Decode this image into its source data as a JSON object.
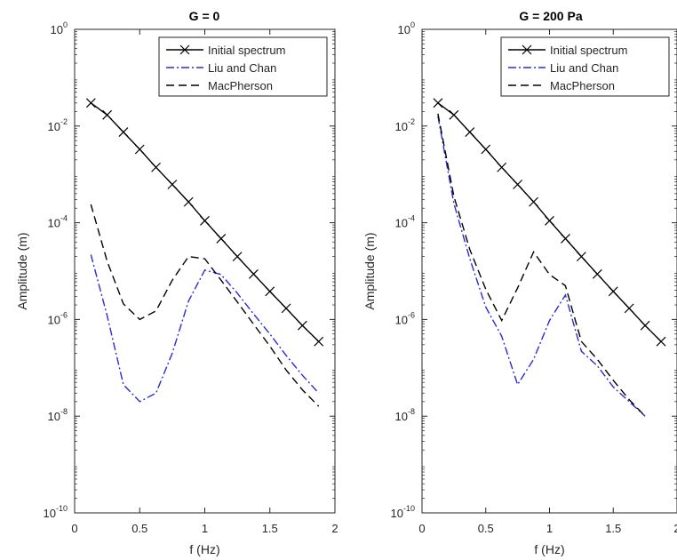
{
  "chart_data": [
    {
      "type": "line",
      "title": "G = 0",
      "xlabel": "f (Hz)",
      "ylabel": "Amplitude (m)",
      "xlim": [
        0,
        2
      ],
      "ylim": [
        1e-10,
        1
      ],
      "yscale": "log",
      "xticks": [
        "0",
        "0.5",
        "1",
        "1.5",
        "2"
      ],
      "yticks": [
        {
          "base": "10",
          "exp": "-10"
        },
        {
          "base": "10",
          "exp": "-8"
        },
        {
          "base": "10",
          "exp": "-6"
        },
        {
          "base": "10",
          "exp": "-4"
        },
        {
          "base": "10",
          "exp": "-2"
        },
        {
          "base": "10",
          "exp": "0"
        }
      ],
      "legend_position": "top-right",
      "series": [
        {
          "name": "Initial spectrum",
          "color": "#000000",
          "style": "solid-x-markers",
          "x": [
            0.125,
            0.25,
            0.375,
            0.5,
            0.625,
            0.75,
            0.875,
            1.0,
            1.125,
            1.25,
            1.375,
            1.5,
            1.625,
            1.75,
            1.875
          ],
          "y": [
            0.03,
            0.017,
            0.0075,
            0.0033,
            0.0014,
            0.00062,
            0.00027,
            0.00011,
            4.7e-05,
            2e-05,
            8.7e-06,
            3.8e-06,
            1.7e-06,
            7.5e-07,
            3.5e-07
          ]
        },
        {
          "name": "Liu and Chan",
          "color": "#2b2bd6",
          "style": "dashdot",
          "x": [
            0.125,
            0.25,
            0.375,
            0.5,
            0.625,
            0.75,
            0.875,
            1.0,
            1.125,
            1.25,
            1.375,
            1.5,
            1.625,
            1.75,
            1.875
          ],
          "y": [
            2.2e-05,
            1.2e-06,
            4.5e-08,
            2e-08,
            3e-08,
            2e-07,
            2.4e-06,
            1.05e-05,
            8.5e-06,
            3.5e-06,
            1.3e-06,
            5e-07,
            1.8e-07,
            7e-08,
            3e-08
          ]
        },
        {
          "name": "MacPherson",
          "color": "#000000",
          "style": "dashed",
          "x": [
            0.125,
            0.25,
            0.375,
            0.5,
            0.625,
            0.75,
            0.875,
            1.0,
            1.125,
            1.25,
            1.375,
            1.5,
            1.625,
            1.75,
            1.875
          ],
          "y": [
            0.00024,
            1.6e-05,
            2.1e-06,
            1e-06,
            1.5e-06,
            6.5e-06,
            2e-05,
            1.8e-05,
            6.5e-06,
            2.3e-06,
            8e-07,
            2.8e-07,
            9e-08,
            3.5e-08,
            1.6e-08
          ]
        }
      ]
    },
    {
      "type": "line",
      "title": "G = 200 Pa",
      "xlabel": "f (Hz)",
      "ylabel": "Amplitude (m)",
      "xlim": [
        0,
        2
      ],
      "ylim": [
        1e-10,
        1
      ],
      "yscale": "log",
      "xticks": [
        "0",
        "0.5",
        "1",
        "1.5",
        "2"
      ],
      "yticks": [
        {
          "base": "10",
          "exp": "-10"
        },
        {
          "base": "10",
          "exp": "-8"
        },
        {
          "base": "10",
          "exp": "-6"
        },
        {
          "base": "10",
          "exp": "-4"
        },
        {
          "base": "10",
          "exp": "-2"
        },
        {
          "base": "10",
          "exp": "0"
        }
      ],
      "legend_position": "top-right",
      "series": [
        {
          "name": "Initial spectrum",
          "color": "#000000",
          "style": "solid-x-markers",
          "x": [
            0.125,
            0.25,
            0.375,
            0.5,
            0.625,
            0.75,
            0.875,
            1.0,
            1.125,
            1.25,
            1.375,
            1.5,
            1.625,
            1.75,
            1.875
          ],
          "y": [
            0.03,
            0.017,
            0.0075,
            0.0033,
            0.0014,
            0.00062,
            0.00027,
            0.00011,
            4.7e-05,
            2e-05,
            8.7e-06,
            3.8e-06,
            1.7e-06,
            7.5e-07,
            3.5e-07
          ]
        },
        {
          "name": "Liu and Chan",
          "color": "#2b2bd6",
          "style": "dashdot",
          "x": [
            0.125,
            0.25,
            0.375,
            0.5,
            0.625,
            0.75,
            0.875,
            1.0,
            1.125,
            1.25,
            1.375,
            1.5,
            1.625,
            1.75
          ],
          "y": [
            0.016,
            0.00025,
            1.8e-05,
            1.8e-06,
            4.5e-07,
            4.5e-08,
            1.5e-07,
            9.5e-07,
            3.2e-06,
            2.2e-07,
            1.1e-07,
            4e-08,
            2e-08,
            1e-08
          ]
        },
        {
          "name": "MacPherson",
          "color": "#000000",
          "style": "dashed",
          "x": [
            0.125,
            0.25,
            0.375,
            0.5,
            0.625,
            0.75,
            0.875,
            1.0,
            1.125,
            1.25,
            1.375,
            1.5,
            1.625,
            1.75
          ],
          "y": [
            0.018,
            0.00035,
            2.8e-05,
            4.2e-06,
            9.5e-07,
            4.5e-06,
            2.5e-05,
            8.5e-06,
            5e-06,
            3.5e-07,
            1.5e-07,
            5.5e-08,
            2.2e-08,
            1e-08
          ]
        }
      ]
    }
  ]
}
